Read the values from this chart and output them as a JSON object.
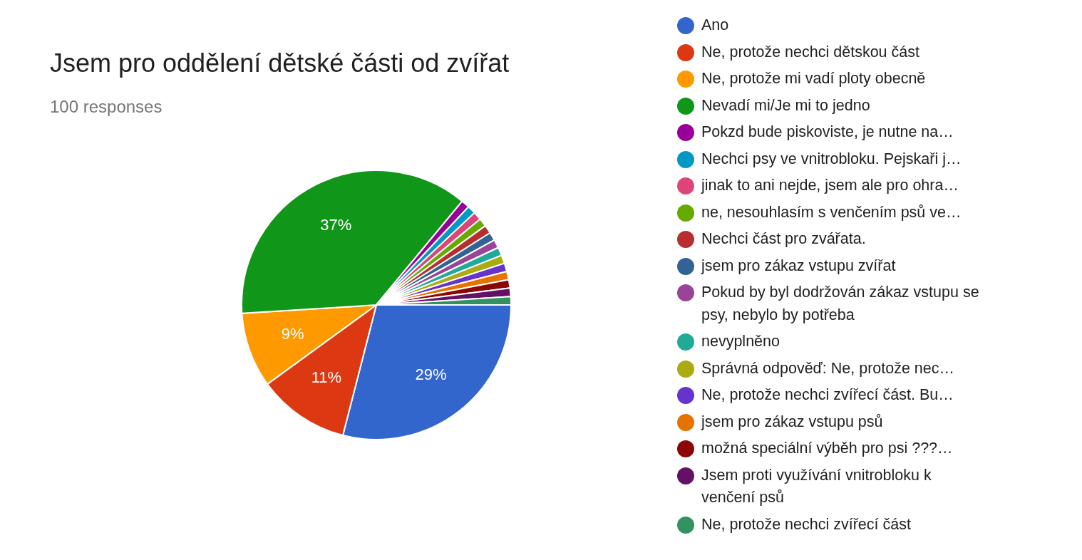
{
  "chart_data": {
    "type": "pie",
    "title": "Jsem pro oddělení dětské části od zvířat",
    "subtitle": "100 responses",
    "categories": [
      "Ano",
      "Ne, protože nechci dětskou část",
      "Ne, protože mi vadí ploty obecně",
      "Nevadí mi/Je mi to jedno",
      "Pokzd bude piskoviste, je nutne na…",
      "Nechci psy ve vnitrobloku. Pejskaři j…",
      "jinak to ani nejde, jsem ale pro ohra…",
      "ne, nesouhlasím s venčením psů ve…",
      "Nechci část pro zvářata.",
      "jsem pro zákaz vstupu zvířat",
      "Pokud by byl dodržován zákaz vstupu se psy, nebylo by potřeba",
      "nevyplněno",
      "Správná odpověď: Ne, protože nec…",
      "Ne, protože nechci zvířecí část. Bu…",
      "jsem pro zákaz vstupu psů",
      "možná speciální výběh pro psi ???…",
      "Jsem proti využívání vnitrobloku k venčení psů",
      "Ne, protože nechci zvířecí část"
    ],
    "values": [
      29,
      11,
      9,
      37,
      1,
      1,
      1,
      1,
      1,
      1,
      1,
      1,
      1,
      1,
      1,
      1,
      1,
      1
    ],
    "colors": [
      "#3366cc",
      "#dc3912",
      "#ff9900",
      "#109618",
      "#990099",
      "#0099c6",
      "#dd4477",
      "#66aa00",
      "#b82e2e",
      "#316395",
      "#994499",
      "#22aa99",
      "#aaaa11",
      "#6633cc",
      "#e67300",
      "#8b0707",
      "#651067",
      "#329262"
    ],
    "value_labels": [
      "29%",
      "11%",
      "9%",
      "37%",
      null,
      null,
      null,
      null,
      null,
      null,
      null,
      null,
      null,
      null,
      null,
      null,
      null,
      null
    ],
    "legend": "right"
  }
}
